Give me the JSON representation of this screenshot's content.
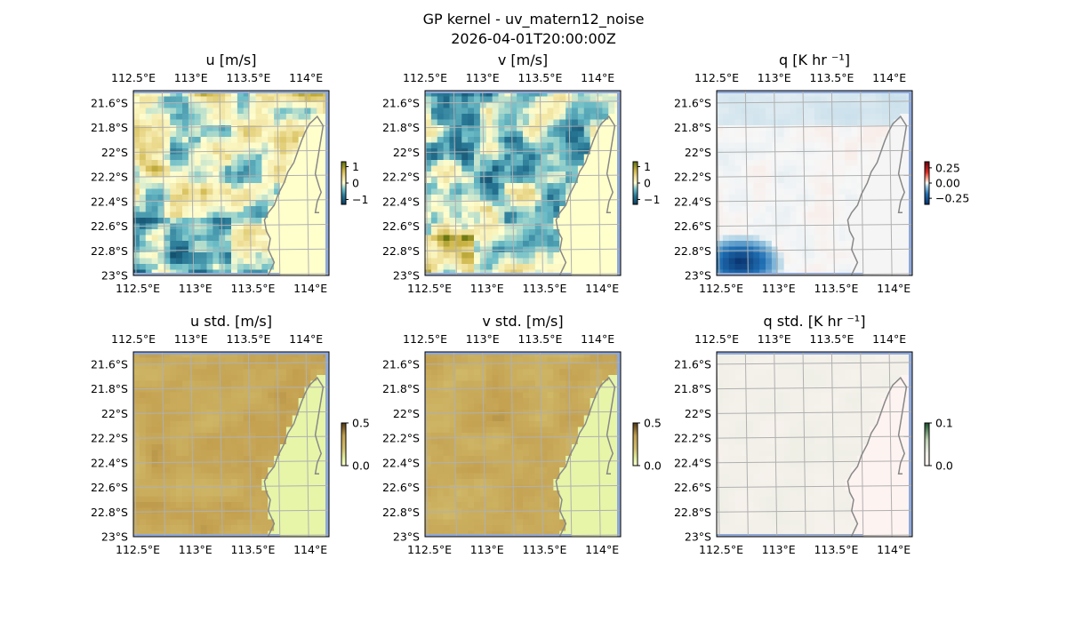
{
  "figure": {
    "title_line1": "GP kernel - uv_matern12_noise",
    "title_line2": "2026-04-01T20:00:00Z"
  },
  "chart_data": [
    {
      "type": "heatmap",
      "title": "u [m/s]",
      "variable": "u",
      "cmap": "diverging-teal-yellow-olive",
      "colorbar": {
        "ticks": [
          "1",
          "0",
          "−1"
        ],
        "range": [
          -1.3,
          1.3
        ]
      },
      "xticks": [
        "112.5°E",
        "113°E",
        "113.5°E",
        "114°E"
      ],
      "yticks": [
        "21.6°S",
        "21.8°S",
        "22°S",
        "22.2°S",
        "22.4°S",
        "22.6°S",
        "22.8°S",
        "23°S"
      ],
      "x_range": [
        112.5,
        114.2
      ],
      "y_range": [
        -21.5,
        -23.0
      ],
      "grid": true
    },
    {
      "type": "heatmap",
      "title": "v [m/s]",
      "variable": "v",
      "cmap": "diverging-teal-yellow-olive",
      "colorbar": {
        "ticks": [
          "1",
          "0",
          "−1"
        ],
        "range": [
          -1.3,
          1.3
        ]
      },
      "xticks": [
        "112.5°E",
        "113°E",
        "113.5°E",
        "114°E"
      ],
      "yticks": [
        "21.6°S",
        "21.8°S",
        "22°S",
        "22.2°S",
        "22.4°S",
        "22.6°S",
        "22.8°S",
        "23°S"
      ],
      "x_range": [
        112.5,
        114.2
      ],
      "y_range": [
        -21.5,
        -23.0
      ],
      "grid": true
    },
    {
      "type": "heatmap",
      "title": "q [K hr ⁻¹]",
      "variable": "q",
      "cmap": "diverging-blue-white-red",
      "colorbar": {
        "ticks": [
          "0.25",
          "0.00",
          "−0.25"
        ],
        "range": [
          -0.35,
          0.35
        ]
      },
      "xticks": [
        "112.5°E",
        "113°E",
        "113.5°E",
        "114°E"
      ],
      "yticks": [
        "21.6°S",
        "21.8°S",
        "22°S",
        "22.2°S",
        "22.4°S",
        "22.6°S",
        "22.8°S",
        "23°S"
      ],
      "x_range": [
        112.5,
        114.2
      ],
      "y_range": [
        -21.5,
        -23.0
      ],
      "grid": true
    },
    {
      "type": "heatmap",
      "title": "u std. [m/s]",
      "variable": "u_std",
      "cmap": "sequential-yellow-brown",
      "colorbar": {
        "ticks": [
          "0.5",
          "0.0"
        ],
        "range": [
          0,
          0.5
        ]
      },
      "xticks": [
        "112.5°E",
        "113°E",
        "113.5°E",
        "114°E"
      ],
      "yticks": [
        "21.6°S",
        "21.8°S",
        "22°S",
        "22.2°S",
        "22.4°S",
        "22.6°S",
        "22.8°S",
        "23°S"
      ],
      "x_range": [
        112.5,
        114.2
      ],
      "y_range": [
        -21.5,
        -23.0
      ],
      "grid": true
    },
    {
      "type": "heatmap",
      "title": "v std. [m/s]",
      "variable": "v_std",
      "cmap": "sequential-yellow-brown",
      "colorbar": {
        "ticks": [
          "0.5",
          "0.0"
        ],
        "range": [
          0,
          0.5
        ]
      },
      "xticks": [
        "112.5°E",
        "113°E",
        "113.5°E",
        "114°E"
      ],
      "yticks": [
        "21.6°S",
        "21.8°S",
        "22°S",
        "22.2°S",
        "22.4°S",
        "22.6°S",
        "22.8°S",
        "23°S"
      ],
      "x_range": [
        112.5,
        114.2
      ],
      "y_range": [
        -21.5,
        -23.0
      ],
      "grid": true
    },
    {
      "type": "heatmap",
      "title": "q std. [K hr ⁻¹]",
      "variable": "q_std",
      "cmap": "sequential-pink-green",
      "colorbar": {
        "ticks": [
          "0.1",
          "0.0"
        ],
        "range": [
          0,
          0.1
        ]
      },
      "xticks": [
        "112.5°E",
        "113°E",
        "113.5°E",
        "114°E"
      ],
      "yticks": [
        "21.6°S",
        "21.8°S",
        "22°S",
        "22.2°S",
        "22.4°S",
        "22.6°S",
        "22.8°S",
        "23°S"
      ],
      "x_range": [
        112.5,
        114.2
      ],
      "y_range": [
        -21.5,
        -23.0
      ],
      "grid": true
    }
  ],
  "colors": {
    "ocean_edge": "#8fa8d8",
    "coastline": "#888888",
    "gridline": "#b0b0b0",
    "land_yellow": "#ffffcc",
    "land_green_yellow": "#e6f5a8",
    "land_pink": "#fdf3f1"
  }
}
